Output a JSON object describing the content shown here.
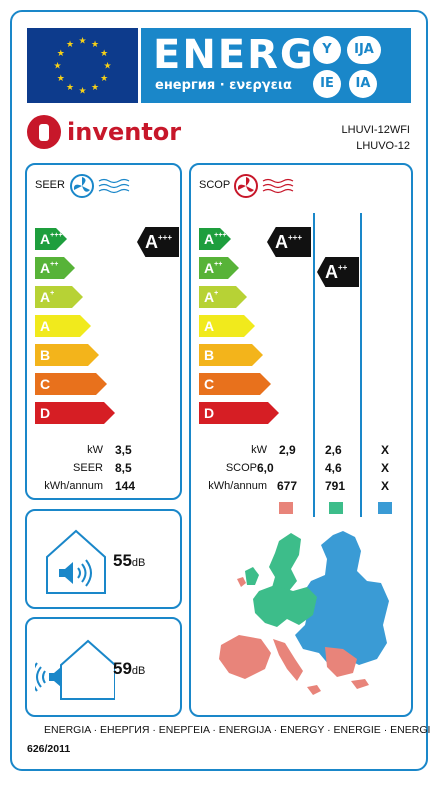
{
  "header": {
    "energ_word": "ENERG",
    "energ_sub": "енергия · ενεργεια",
    "lang_codes": [
      "Y",
      "IJA",
      "IE",
      "IA"
    ]
  },
  "brand": {
    "name": "inventor",
    "model_indoor": "LHUVI-12WFI",
    "model_outdoor": "LHUVO-12"
  },
  "seer": {
    "title": "SEER",
    "classes": [
      "A+++",
      "A++",
      "A+",
      "A",
      "B",
      "C",
      "D"
    ],
    "rating": "A+++",
    "labels": [
      "kW",
      "SEER",
      "kWh/annum"
    ],
    "values": [
      "3,5",
      "8,5",
      "144"
    ]
  },
  "scop": {
    "title": "SCOP",
    "classes": [
      "A+++",
      "A++",
      "A+",
      "A",
      "B",
      "C",
      "D"
    ],
    "ratings": [
      "A+++",
      "A++"
    ],
    "labels": [
      "kW",
      "SCOP",
      "kWh/annum"
    ],
    "columns": [
      {
        "zone": "warmer",
        "color": "#e8847a",
        "values": [
          "2,9",
          "6,0",
          "677"
        ]
      },
      {
        "zone": "average",
        "color": "#3dbd8a",
        "values": [
          "2,6",
          "4,6",
          "791"
        ]
      },
      {
        "zone": "colder",
        "color": "#3a9bd5",
        "values": [
          "X",
          "X",
          "X"
        ]
      }
    ]
  },
  "noise": {
    "indoor_value": "55",
    "outdoor_value": "59",
    "unit": "dB"
  },
  "footer": {
    "energy_words": "ENERGIA · ЕНЕРГИЯ · ΕΝΕΡΓΕΙΑ · ENERGIJA · ENERGY · ENERGIE · ENERGI",
    "regulation": "626/2011"
  },
  "colors": {
    "frame": "#1a87c9",
    "eu_blue": "#0d3b8c",
    "brand_red": "#c7172a",
    "class_colors": [
      "#1e9e3d",
      "#57b338",
      "#b7d235",
      "#f1ea1c",
      "#f3b41b",
      "#e8711c",
      "#d61e24"
    ]
  }
}
